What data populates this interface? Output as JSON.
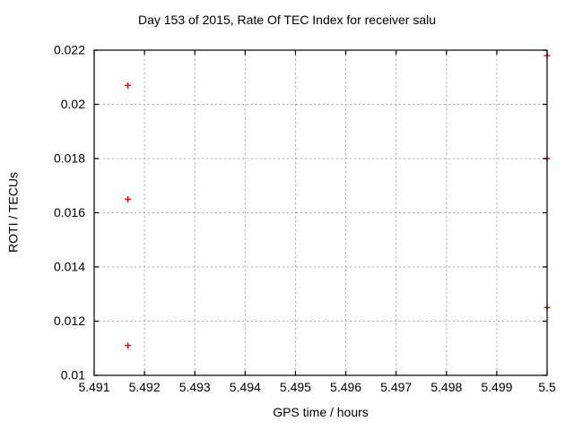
{
  "chart_data": {
    "type": "scatter",
    "title": "Day 153 of 2015, Rate Of TEC Index for receiver salu",
    "xlabel": "GPS time / hours",
    "ylabel": "ROTI / TECUs",
    "xlim": [
      5.491,
      5.5
    ],
    "ylim": [
      0.01,
      0.022
    ],
    "grid": true,
    "legend": "none",
    "xticks": [
      {
        "value": 5.491,
        "label": "5.491"
      },
      {
        "value": 5.492,
        "label": "5.492"
      },
      {
        "value": 5.493,
        "label": "5.493"
      },
      {
        "value": 5.494,
        "label": "5.494"
      },
      {
        "value": 5.495,
        "label": "5.495"
      },
      {
        "value": 5.496,
        "label": "5.496"
      },
      {
        "value": 5.497,
        "label": "5.497"
      },
      {
        "value": 5.498,
        "label": "5.498"
      },
      {
        "value": 5.499,
        "label": "5.499"
      },
      {
        "value": 5.5,
        "label": "5.5"
      }
    ],
    "yticks": [
      {
        "value": 0.01,
        "label": "0.01"
      },
      {
        "value": 0.012,
        "label": "0.012"
      },
      {
        "value": 0.014,
        "label": "0.014"
      },
      {
        "value": 0.016,
        "label": "0.016"
      },
      {
        "value": 0.018,
        "label": "0.018"
      },
      {
        "value": 0.02,
        "label": "0.02"
      },
      {
        "value": 0.022,
        "label": "0.022"
      }
    ],
    "series": [
      {
        "name": "ROTI",
        "marker": "plus",
        "color": "#ff0000",
        "points": [
          {
            "x": 5.49167,
            "y": 0.0207
          },
          {
            "x": 5.49167,
            "y": 0.0165
          },
          {
            "x": 5.49167,
            "y": 0.0111
          },
          {
            "x": 5.5,
            "y": 0.0218
          },
          {
            "x": 5.5,
            "y": 0.018
          },
          {
            "x": 5.5,
            "y": 0.0125
          }
        ]
      }
    ]
  },
  "colors": {
    "marker": "#ff0000",
    "grid": "#a8a8a8",
    "axis": "#000000",
    "text": "#000000",
    "background": "#ffffff"
  }
}
